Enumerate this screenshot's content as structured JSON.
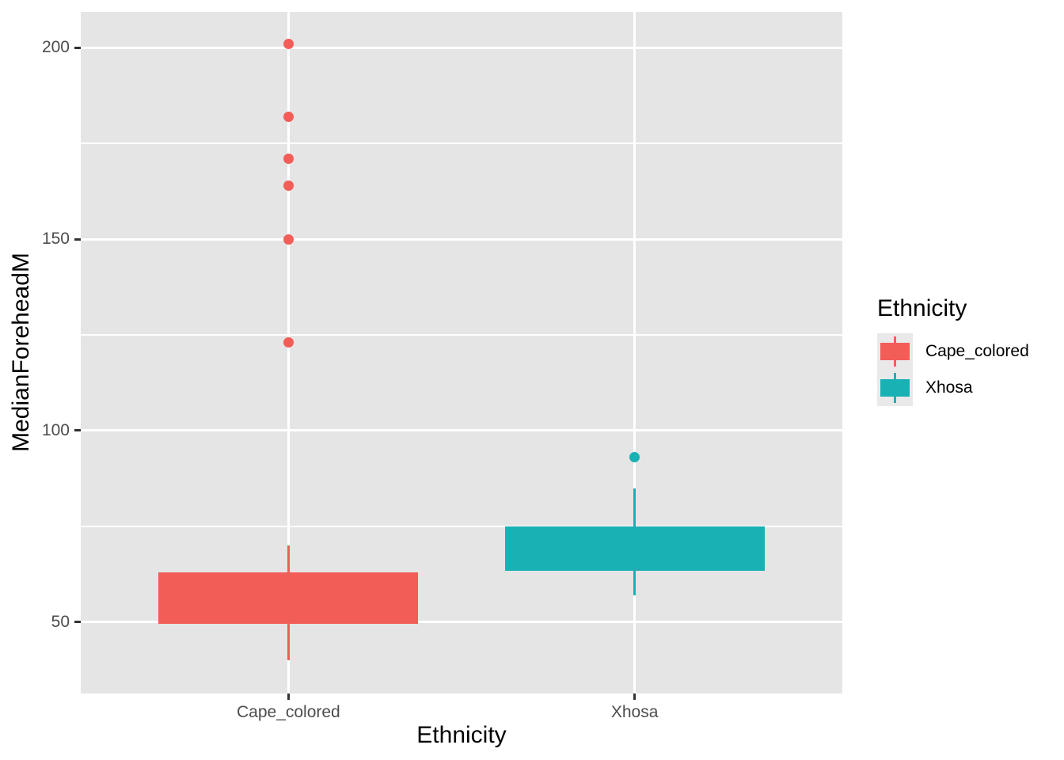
{
  "chart_data": {
    "type": "boxplot",
    "xlabel": "Ethnicity",
    "ylabel": "MedianForeheadM",
    "categories": [
      "Cape_colored",
      "Xhosa"
    ],
    "y_ticks": [
      50,
      100,
      150,
      200
    ],
    "y_tick_labels": [
      "50",
      "100",
      "150",
      "200"
    ],
    "y_minor_gridlines": [
      75,
      125,
      175
    ],
    "ylim": [
      31.4,
      209.3
    ],
    "grid": true,
    "legend_position": "right",
    "series": [
      {
        "name": "Cape_colored",
        "color": "#F25D58",
        "box": {
          "whisker_low": 40,
          "q1": 49.5,
          "median": null,
          "q3": 63,
          "whisker_high": 70
        },
        "outliers": [
          123,
          150,
          164,
          171,
          182,
          201
        ],
        "note": "median line not distinguishable (box outline colour equals fill)"
      },
      {
        "name": "Xhosa",
        "color": "#18B1B4",
        "box": {
          "whisker_low": 57,
          "q1": 63.4,
          "median": null,
          "q3": 75,
          "whisker_high": 85
        },
        "outliers": [
          93
        ],
        "note": "median line not distinguishable (box outline colour equals fill)"
      }
    ]
  },
  "axes": {
    "x_title": "Ethnicity",
    "y_title": "MedianForeheadM"
  },
  "legend": {
    "title": "Ethnicity",
    "items": [
      {
        "label": "Cape_colored",
        "color": "#F25D58"
      },
      {
        "label": "Xhosa",
        "color": "#18B1B4"
      }
    ]
  },
  "colors": {
    "page_background": "#FFFFFF",
    "panel_background": "#E5E5E5",
    "gridline": "#FFFFFF",
    "tick_mark": "#333333",
    "tick_label": "#4D4D4D",
    "axis_title": "#000000",
    "legend_key_background": "#E9E9E9"
  }
}
